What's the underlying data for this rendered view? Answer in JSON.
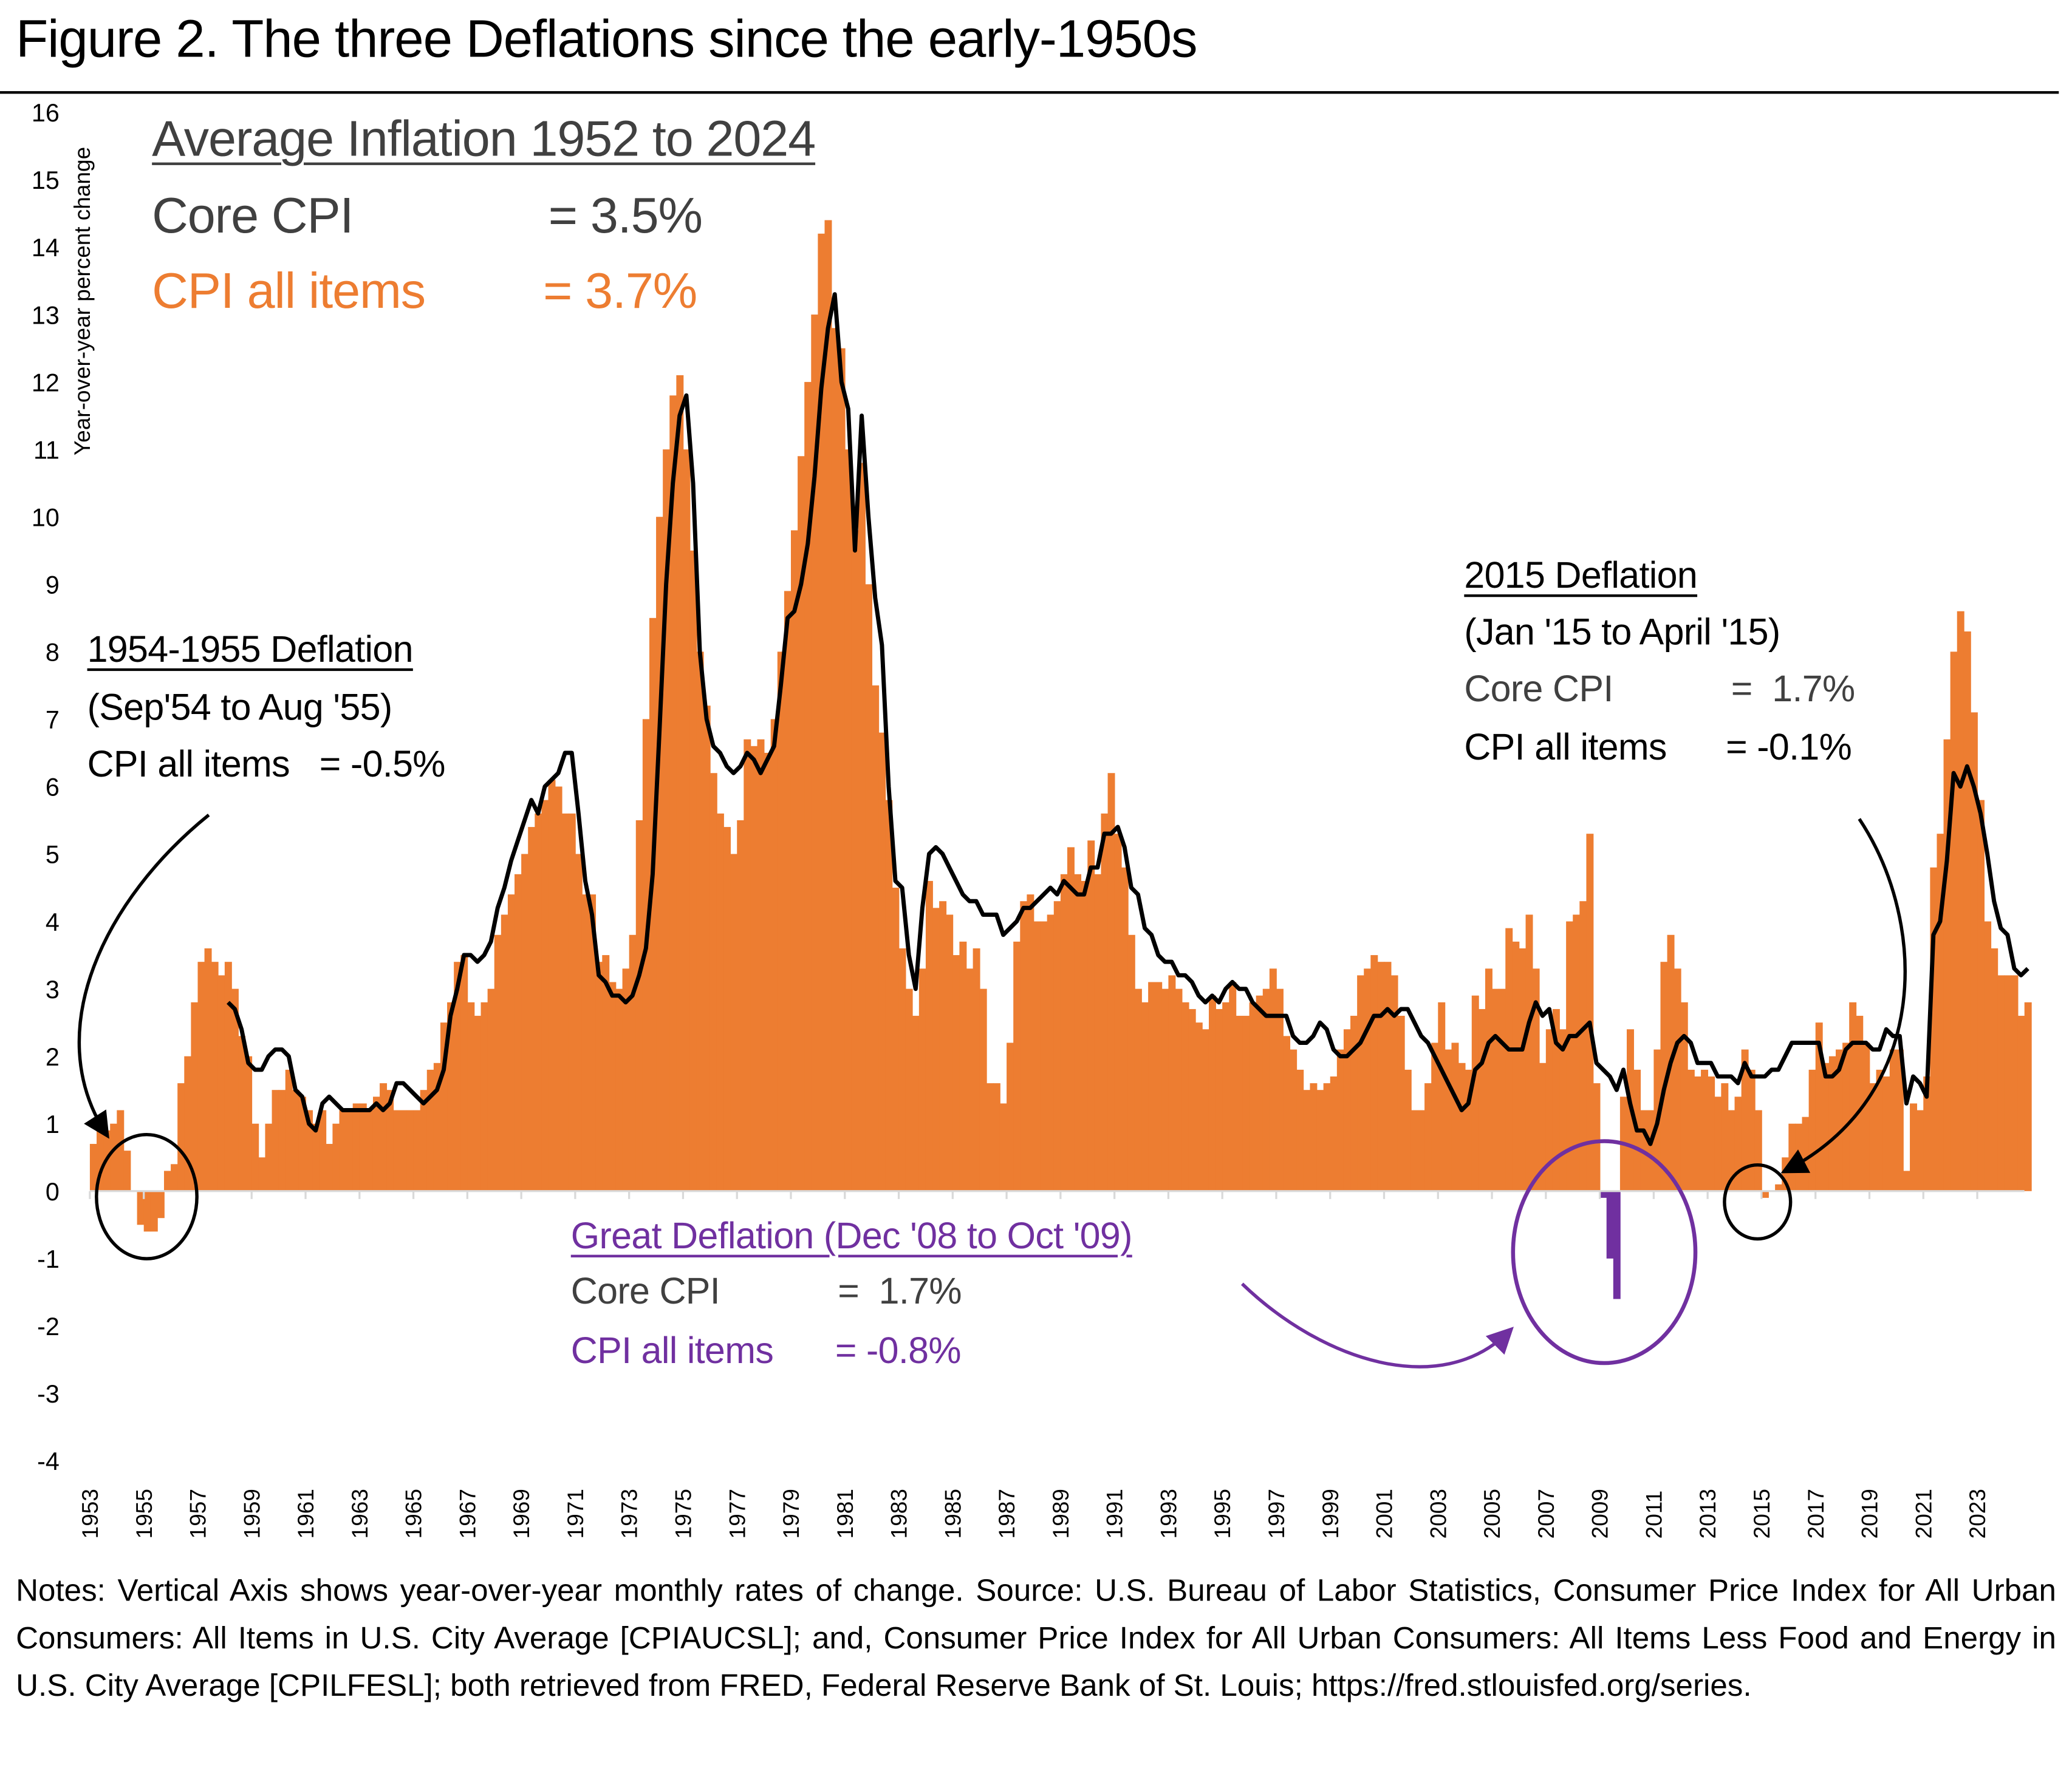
{
  "title": "Figure 2. The three Deflations since the early-1950s",
  "summary": {
    "heading": "Average Inflation 1952 to 2024",
    "core_label": "Core CPI",
    "core_value": "= 3.5%",
    "all_label": "CPI all items",
    "all_value": "= 3.7%"
  },
  "annotations": {
    "d1955": {
      "heading": "1954-1955 Deflation",
      "period": "(Sep'54 to Aug '55)",
      "all_line": "CPI all items   = -0.5%"
    },
    "d2015": {
      "heading": "2015 Deflation",
      "period": "(Jan '15 to April '15)",
      "core_label": "Core CPI",
      "core_value": "=  1.7%",
      "all_label": "CPI all items",
      "all_value": "= -0.1%"
    },
    "d2009": {
      "heading": "Great Deflation (Dec '08 to Oct '09)",
      "core_label": "Core CPI",
      "core_value": "=  1.7%",
      "all_label": "CPI all items",
      "all_value": "= -0.8%"
    }
  },
  "notes": "Notes: Vertical Axis shows year-over-year monthly rates of change. Source: U.S. Bureau of Labor Statistics, Consumer Price Index for All Urban Consumers: All Items in U.S. City Average [CPIAUCSL]; and, Consumer Price Index for All Urban Consumers: All Items Less Food and Energy in U.S. City Average [CPILFESL]; both retrieved from FRED, Federal Reserve Bank of St. Louis; https://fred.stlouisfed.org/series.",
  "colors": {
    "cpi": "#ED7D31",
    "core": "#000000",
    "great_deflation": "#7030A0",
    "text_gray": "#404040"
  },
  "chart_data": {
    "type": "bar",
    "title": "Figure 2. The three Deflations since the early-1950s",
    "ylabel": "Year-over-year  percent change",
    "xlabel": "",
    "ylim": [
      -4,
      16
    ],
    "yticks": [
      "-4",
      "-3",
      "-2",
      "-1",
      "0",
      "1",
      "2",
      "3",
      "4",
      "5",
      "6",
      "7",
      "8",
      "9",
      "10",
      "11",
      "12",
      "13",
      "14",
      "15",
      "16"
    ],
    "xticks": [
      "1953",
      "1955",
      "1957",
      "1959",
      "1961",
      "1963",
      "1965",
      "1967",
      "1969",
      "1971",
      "1973",
      "1975",
      "1977",
      "1979",
      "1981",
      "1983",
      "1985",
      "1987",
      "1989",
      "1991",
      "1993",
      "1995",
      "1997",
      "1999",
      "2001",
      "2003",
      "2005",
      "2007",
      "2009",
      "2011",
      "2013",
      "2015",
      "2017",
      "2019",
      "2021",
      "2023"
    ],
    "xlim": [
      1953,
      2024.75
    ],
    "frequency": "quarterly (approx.)",
    "highlight_range": [
      2008.9,
      2009.9
    ],
    "series": [
      {
        "name": "CPI all items",
        "kind": "bar",
        "start": 1953,
        "values": [
          0.7,
          0.9,
          0.9,
          1.0,
          1.2,
          0.6,
          0.0,
          -0.5,
          -0.6,
          -0.6,
          -0.4,
          0.3,
          0.4,
          1.6,
          2.0,
          2.8,
          3.4,
          3.6,
          3.4,
          3.2,
          3.4,
          3.0,
          2.3,
          2.0,
          1.0,
          0.5,
          1.0,
          1.5,
          1.5,
          1.8,
          1.5,
          1.4,
          1.2,
          1.0,
          1.2,
          0.7,
          1.0,
          1.2,
          1.2,
          1.3,
          1.3,
          1.2,
          1.4,
          1.6,
          1.5,
          1.2,
          1.2,
          1.2,
          1.2,
          1.5,
          1.8,
          1.9,
          2.5,
          2.8,
          3.4,
          3.5,
          2.8,
          2.6,
          2.8,
          3.0,
          3.8,
          4.1,
          4.4,
          4.7,
          5.0,
          5.4,
          5.6,
          5.8,
          6.1,
          6.0,
          5.6,
          5.6,
          5.0,
          4.4,
          4.4,
          3.4,
          3.5,
          3.1,
          3.0,
          3.3,
          3.8,
          5.5,
          7.0,
          8.5,
          10.0,
          11.0,
          11.8,
          12.1,
          11.0,
          9.5,
          8.0,
          7.2,
          6.2,
          5.6,
          5.4,
          5.0,
          5.5,
          6.7,
          6.6,
          6.7,
          6.5,
          7.0,
          8.0,
          8.9,
          9.8,
          10.9,
          12.0,
          13.0,
          14.2,
          14.4,
          12.8,
          12.5,
          11.0,
          9.8,
          10.8,
          9.0,
          7.5,
          6.8,
          5.8,
          4.5,
          3.6,
          3.0,
          2.6,
          3.3,
          4.6,
          4.2,
          4.3,
          4.1,
          3.5,
          3.7,
          3.3,
          3.6,
          3.0,
          1.6,
          1.6,
          1.3,
          2.2,
          3.7,
          4.3,
          4.4,
          4.0,
          4.0,
          4.1,
          4.3,
          4.7,
          5.1,
          4.7,
          4.6,
          5.2,
          4.7,
          5.6,
          6.2,
          5.3,
          4.8,
          3.8,
          3.0,
          2.8,
          3.1,
          3.1,
          3.0,
          3.2,
          3.0,
          2.8,
          2.7,
          2.5,
          2.4,
          2.9,
          2.7,
          2.8,
          3.1,
          2.6,
          2.6,
          2.8,
          2.9,
          3.0,
          3.3,
          3.0,
          2.3,
          2.1,
          1.8,
          1.5,
          1.6,
          1.5,
          1.6,
          1.7,
          2.1,
          2.4,
          2.6,
          3.2,
          3.3,
          3.5,
          3.4,
          3.4,
          3.2,
          2.6,
          1.8,
          1.2,
          1.2,
          1.6,
          2.2,
          2.8,
          2.1,
          2.2,
          1.9,
          1.8,
          2.9,
          2.7,
          3.3,
          3.0,
          3.0,
          3.9,
          3.7,
          3.6,
          4.1,
          3.3,
          1.9,
          2.4,
          2.7,
          2.4,
          4.0,
          4.1,
          4.3,
          5.3,
          1.6,
          -0.1,
          -1.0,
          -1.6,
          1.4,
          2.4,
          1.8,
          1.2,
          1.2,
          2.1,
          3.4,
          3.8,
          3.3,
          2.8,
          1.8,
          1.7,
          1.8,
          1.7,
          1.4,
          1.6,
          1.2,
          1.4,
          2.1,
          1.8,
          1.2,
          -0.1,
          0.0,
          0.1,
          0.5,
          1.0,
          1.0,
          1.1,
          1.8,
          2.5,
          1.9,
          2.0,
          2.1,
          2.2,
          2.8,
          2.6,
          2.2,
          1.6,
          1.8,
          1.7,
          2.1,
          2.1,
          0.3,
          1.3,
          1.2,
          1.7,
          4.8,
          5.3,
          6.7,
          8.0,
          8.6,
          8.3,
          7.1,
          5.8,
          4.0,
          3.6,
          3.2,
          3.2,
          3.2,
          2.6,
          2.8
        ]
      },
      {
        "name": "Core CPI",
        "kind": "line",
        "start": 1958,
        "values": [
          2.8,
          2.7,
          2.4,
          1.9,
          1.8,
          1.8,
          2.0,
          2.1,
          2.1,
          2.0,
          1.5,
          1.4,
          1.0,
          0.9,
          1.3,
          1.4,
          1.3,
          1.2,
          1.2,
          1.2,
          1.2,
          1.2,
          1.3,
          1.2,
          1.3,
          1.6,
          1.6,
          1.5,
          1.4,
          1.3,
          1.4,
          1.5,
          1.8,
          2.6,
          3.0,
          3.5,
          3.5,
          3.4,
          3.5,
          3.7,
          4.2,
          4.5,
          4.9,
          5.2,
          5.5,
          5.8,
          5.6,
          6.0,
          6.1,
          6.2,
          6.5,
          6.5,
          5.6,
          4.6,
          4.1,
          3.2,
          3.1,
          2.9,
          2.9,
          2.8,
          2.9,
          3.2,
          3.6,
          4.7,
          6.8,
          9.0,
          10.5,
          11.5,
          11.8,
          10.5,
          8.0,
          7.0,
          6.6,
          6.5,
          6.3,
          6.2,
          6.3,
          6.5,
          6.4,
          6.2,
          6.4,
          6.6,
          7.5,
          8.5,
          8.6,
          9.0,
          9.6,
          10.6,
          11.9,
          12.8,
          13.3,
          12.0,
          11.6,
          9.5,
          11.5,
          10.0,
          8.8,
          8.1,
          6.0,
          4.6,
          4.5,
          3.5,
          3.0,
          4.2,
          5.0,
          5.1,
          5.0,
          4.8,
          4.6,
          4.4,
          4.3,
          4.3,
          4.1,
          4.1,
          4.1,
          3.8,
          3.9,
          4.0,
          4.2,
          4.2,
          4.3,
          4.4,
          4.5,
          4.4,
          4.6,
          4.5,
          4.4,
          4.4,
          4.8,
          4.8,
          5.3,
          5.3,
          5.4,
          5.1,
          4.5,
          4.4,
          3.9,
          3.8,
          3.5,
          3.4,
          3.4,
          3.2,
          3.2,
          3.1,
          2.9,
          2.8,
          2.9,
          2.8,
          3.0,
          3.1,
          3.0,
          3.0,
          2.8,
          2.7,
          2.6,
          2.6,
          2.6,
          2.6,
          2.3,
          2.2,
          2.2,
          2.3,
          2.5,
          2.4,
          2.1,
          2.0,
          2.0,
          2.1,
          2.2,
          2.4,
          2.6,
          2.6,
          2.7,
          2.6,
          2.7,
          2.7,
          2.5,
          2.3,
          2.2,
          2.0,
          1.8,
          1.6,
          1.4,
          1.2,
          1.3,
          1.8,
          1.9,
          2.2,
          2.3,
          2.2,
          2.1,
          2.1,
          2.1,
          2.5,
          2.8,
          2.6,
          2.7,
          2.2,
          2.1,
          2.3,
          2.3,
          2.4,
          2.5,
          1.9,
          1.8,
          1.7,
          1.5,
          1.8,
          1.3,
          0.9,
          0.9,
          0.7,
          1.0,
          1.5,
          1.9,
          2.2,
          2.3,
          2.2,
          1.9,
          1.9,
          1.9,
          1.7,
          1.7,
          1.7,
          1.6,
          1.9,
          1.7,
          1.7,
          1.7,
          1.8,
          1.8,
          2.0,
          2.2,
          2.2,
          2.2,
          2.2,
          2.2,
          1.7,
          1.7,
          1.8,
          2.1,
          2.2,
          2.2,
          2.2,
          2.1,
          2.1,
          2.4,
          2.3,
          2.3,
          1.3,
          1.7,
          1.6,
          1.4,
          3.8,
          4.0,
          4.9,
          6.2,
          6.0,
          6.3,
          6.0,
          5.6,
          5.0,
          4.3,
          3.9,
          3.8,
          3.3,
          3.2,
          3.3
        ]
      }
    ]
  }
}
